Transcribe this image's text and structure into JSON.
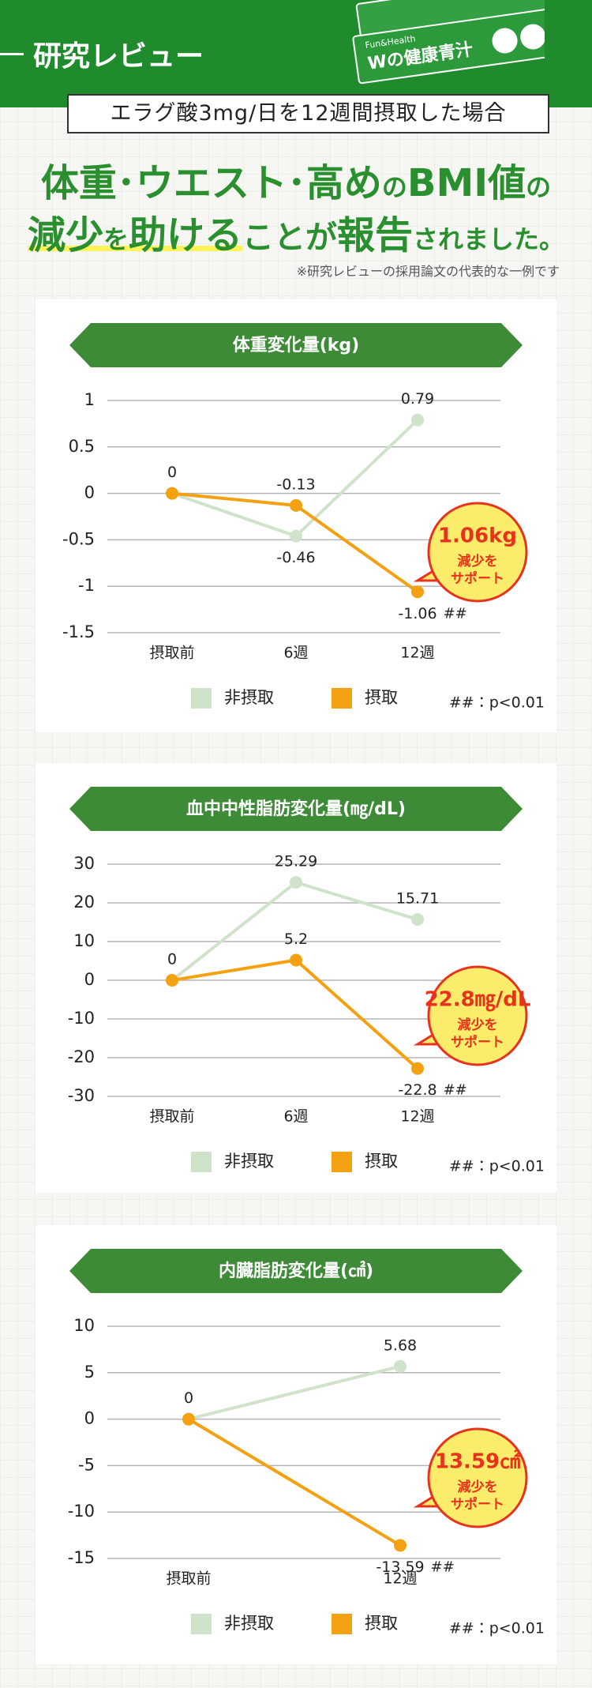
{
  "header": {
    "title": "研究レビュー",
    "subtitle": "エラグ酸3mg/日を12週間摂取した場合"
  },
  "product": {
    "brand": "Fun&Health",
    "name": "Wの健康青汁"
  },
  "headline": {
    "line1": [
      "体重･ウエスト･高め",
      "の",
      "BMI値",
      "の"
    ],
    "line2": [
      "減少",
      "を",
      "助ける",
      "ことが",
      "報告",
      "されました。"
    ]
  },
  "note": "※研究レビューの採用論文の代表的な一例です",
  "chart_data": [
    {
      "type": "line",
      "title": "体重変化量(kg)",
      "categories": [
        "摂取前",
        "6週",
        "12週"
      ],
      "series": [
        {
          "name": "非摂取",
          "color": "#cfe3cb",
          "values": [
            0,
            -0.46,
            0.79
          ],
          "value_labels": [
            null,
            "-0.46",
            "0.79"
          ]
        },
        {
          "name": "摂取",
          "color": "#f4a111",
          "values": [
            0,
            -0.13,
            -1.06
          ],
          "value_labels": [
            "0",
            "-0.13",
            "-1.06"
          ]
        }
      ],
      "ylim": [
        -1.5,
        1
      ],
      "yticks": [
        1,
        0.5,
        0,
        -0.5,
        -1,
        -1.5
      ],
      "grid": true,
      "sig_mark": "##",
      "sig_note": "##：p<0.01",
      "badge": {
        "amount": "1.06kg",
        "text": [
          "減少を",
          "サポート"
        ]
      }
    },
    {
      "type": "line",
      "title": "血中中性脂肪変化量(㎎/dL)",
      "categories": [
        "摂取前",
        "6週",
        "12週"
      ],
      "series": [
        {
          "name": "非摂取",
          "color": "#cfe3cb",
          "values": [
            0,
            25.29,
            15.71
          ],
          "value_labels": [
            null,
            "25.29",
            "15.71"
          ]
        },
        {
          "name": "摂取",
          "color": "#f4a111",
          "values": [
            0,
            5.2,
            -22.8
          ],
          "value_labels": [
            "0",
            "5.2",
            "-22.8"
          ]
        }
      ],
      "ylim": [
        -30,
        30
      ],
      "yticks": [
        30,
        20,
        10,
        0,
        -10,
        -20,
        -30
      ],
      "grid": true,
      "sig_mark": "##",
      "sig_note": "##：p<0.01",
      "badge": {
        "amount": "22.8㎎/dL",
        "text": [
          "減少を",
          "サポート"
        ]
      }
    },
    {
      "type": "line",
      "title": "内臓脂肪変化量(㎠)",
      "categories": [
        "摂取前",
        "12週"
      ],
      "series": [
        {
          "name": "非摂取",
          "color": "#cfe3cb",
          "values": [
            0,
            5.68
          ],
          "value_labels": [
            null,
            "5.68"
          ]
        },
        {
          "name": "摂取",
          "color": "#f4a111",
          "values": [
            0,
            -13.59
          ],
          "value_labels": [
            "0",
            "-13.59"
          ]
        }
      ],
      "ylim": [
        -15,
        10
      ],
      "yticks": [
        10,
        5,
        0,
        -5,
        -10,
        -15
      ],
      "grid": true,
      "sig_mark": "##",
      "sig_note": "##：p<0.01",
      "badge": {
        "amount": "13.59㎠",
        "text": [
          "減少を",
          "サポート"
        ]
      }
    }
  ]
}
